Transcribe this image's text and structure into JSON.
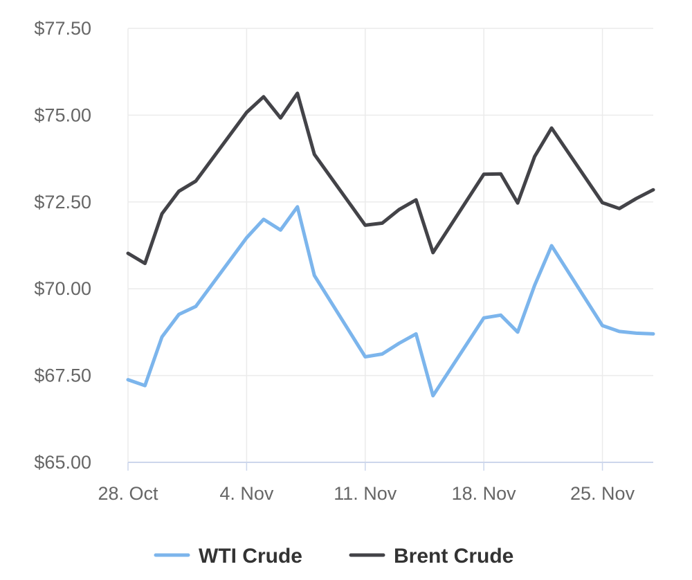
{
  "chart_data": {
    "type": "line",
    "title": "",
    "xlabel": "",
    "ylabel": "",
    "ylim": [
      65,
      77.5
    ],
    "y_ticks": [
      "$65.00",
      "$67.50",
      "$70.00",
      "$72.50",
      "$75.00",
      "$77.50"
    ],
    "y_tick_values": [
      65,
      67.5,
      70,
      72.5,
      75,
      77.5
    ],
    "x_ticks": [
      "28. Oct",
      "4. Nov",
      "11. Nov",
      "18. Nov",
      "25. Nov"
    ],
    "x_tick_dates": [
      "2024-10-28",
      "2024-11-04",
      "2024-11-11",
      "2024-11-18",
      "2024-11-25"
    ],
    "x_range": [
      "2024-10-28",
      "2024-11-28"
    ],
    "grid": true,
    "legend_position": "bottom-center",
    "x": [
      "2024-10-28",
      "2024-10-29",
      "2024-10-30",
      "2024-10-31",
      "2024-11-01",
      "2024-11-04",
      "2024-11-05",
      "2024-11-06",
      "2024-11-07",
      "2024-11-08",
      "2024-11-11",
      "2024-11-12",
      "2024-11-13",
      "2024-11-14",
      "2024-11-15",
      "2024-11-18",
      "2024-11-19",
      "2024-11-20",
      "2024-11-21",
      "2024-11-22",
      "2024-11-25",
      "2024-11-26",
      "2024-11-27",
      "2024-11-28"
    ],
    "series": [
      {
        "name": "WTI Crude",
        "color": "#7cb5ec",
        "values": [
          67.38,
          67.21,
          68.61,
          69.26,
          69.49,
          71.47,
          72.0,
          71.69,
          72.36,
          70.38,
          68.04,
          68.12,
          68.43,
          68.7,
          66.92,
          69.16,
          69.24,
          68.75,
          70.1,
          71.24,
          68.94,
          68.77,
          68.72,
          68.7
        ]
      },
      {
        "name": "Brent Crude",
        "color": "#434348",
        "values": [
          71.02,
          70.73,
          72.16,
          72.81,
          73.1,
          75.08,
          75.53,
          74.92,
          75.63,
          73.87,
          71.83,
          71.89,
          72.28,
          72.56,
          71.04,
          73.3,
          73.31,
          72.47,
          73.81,
          74.63,
          72.48,
          72.31,
          72.6,
          72.85
        ]
      }
    ]
  }
}
